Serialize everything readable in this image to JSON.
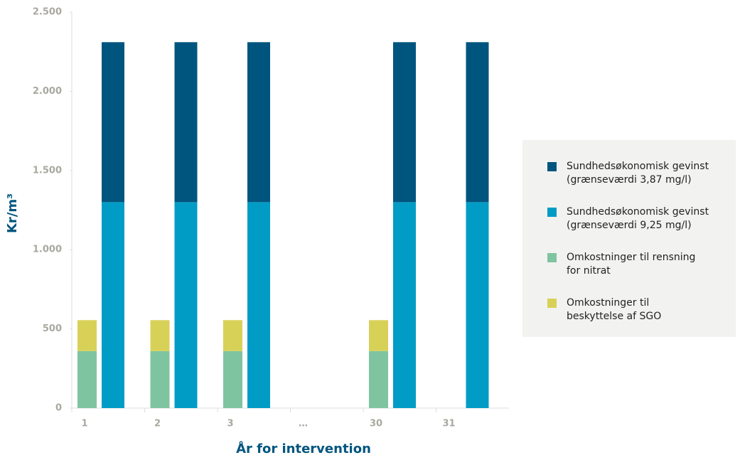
{
  "chart_data": {
    "type": "bar",
    "categories": [
      "1",
      "2",
      "3",
      "…",
      "30",
      "31"
    ],
    "series": [
      {
        "name": "Sundhedsøkonomisk gevinst\n(grænseværdi 3,87 mg/l)",
        "color": "#00557f",
        "values": [
          1010,
          1010,
          1010,
          null,
          1010,
          1010
        ]
      },
      {
        "name": "Sundhedsøkonomisk gevinst\n(grænseværdi 9,25 mg/l)",
        "color": "#009cc5",
        "values": [
          1300,
          1300,
          1300,
          null,
          1300,
          1300
        ]
      },
      {
        "name": "Omkostninger til rensning\nfor nitrat",
        "color": "#7ec4a1",
        "values": [
          360,
          360,
          360,
          null,
          360,
          null
        ]
      },
      {
        "name": "Omkostninger til\nbeskyttelse af SGO",
        "color": "#d8d158",
        "values": [
          195,
          195,
          195,
          null,
          195,
          null
        ]
      }
    ],
    "ylabel": "Kr/m³",
    "xlabel": "År for intervention",
    "ylim": [
      0,
      2500
    ],
    "yticks": [
      0,
      500,
      {
        "value": 1000,
        "label": "1.000"
      },
      {
        "value": 1500,
        "label": "1.500"
      },
      {
        "value": 2000,
        "label": "2.000"
      },
      {
        "value": 2500,
        "label": "2.500"
      }
    ],
    "grid": false,
    "legend": "right"
  }
}
